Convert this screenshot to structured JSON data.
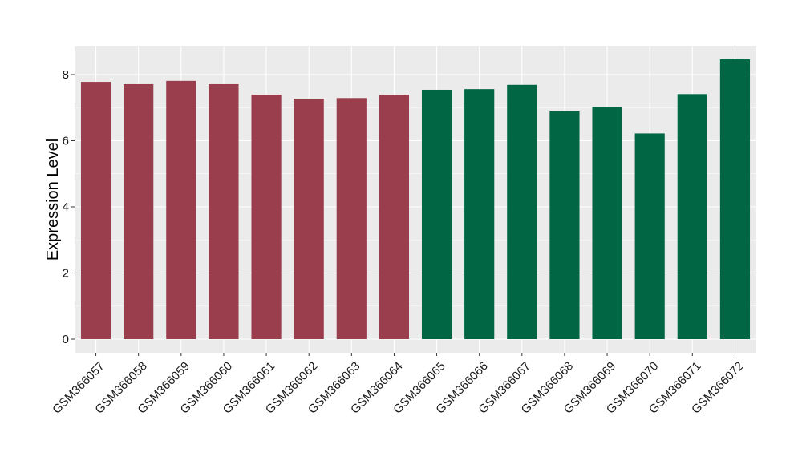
{
  "chart_data": {
    "type": "bar",
    "ylabel": "Expression Level",
    "xlabel": "",
    "ylim": [
      0,
      8.8
    ],
    "yticks": [
      0,
      2,
      4,
      6,
      8
    ],
    "grid": true,
    "legend": "none",
    "categories": [
      "GSM366057",
      "GSM366058",
      "GSM366059",
      "GSM366060",
      "GSM366061",
      "GSM366062",
      "GSM366063",
      "GSM366064",
      "GSM366065",
      "GSM366066",
      "GSM366067",
      "GSM366068",
      "GSM366069",
      "GSM366070",
      "GSM366071",
      "GSM366072"
    ],
    "values": [
      7.78,
      7.71,
      7.81,
      7.71,
      7.39,
      7.27,
      7.29,
      7.39,
      7.54,
      7.56,
      7.69,
      6.89,
      7.02,
      6.22,
      7.41,
      8.46
    ],
    "groups": [
      "a",
      "a",
      "a",
      "a",
      "a",
      "a",
      "a",
      "a",
      "b",
      "b",
      "b",
      "b",
      "b",
      "b",
      "b",
      "b"
    ],
    "colors": {
      "a": "#9a3e4e",
      "b": "#006644"
    },
    "panel_background": "#ebebeb",
    "grid_color": "#ffffff"
  }
}
